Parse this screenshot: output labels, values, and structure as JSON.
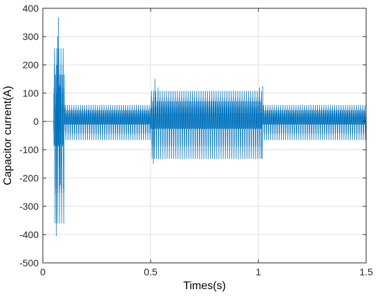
{
  "chart_data": {
    "type": "line",
    "title": "",
    "xlabel": "Times(s)",
    "ylabel": "Capacitor current(A)",
    "xlim": [
      0,
      1.5
    ],
    "ylim": [
      -500,
      400
    ],
    "xticks": [
      0,
      0.5,
      1,
      1.5
    ],
    "xtick_labels": [
      "0",
      "0.5",
      "1",
      "1.5"
    ],
    "yticks": [
      -500,
      -400,
      -300,
      -200,
      -100,
      0,
      100,
      200,
      300,
      400
    ],
    "ytick_labels": [
      "-500",
      "-400",
      "-300",
      "-200",
      "-100",
      "0",
      "100",
      "200",
      "300",
      "400"
    ],
    "grid": true,
    "line_color": "#0072BD",
    "series": [
      {
        "segments": [
          {
            "t_start": 0.0,
            "t_end": 0.05,
            "envelope_max": 0,
            "envelope_min": 0
          },
          {
            "t_start": 0.05,
            "t_end": 0.1,
            "envelope_max": 367,
            "envelope_min": -405
          },
          {
            "t_start": 0.1,
            "t_end": 0.5,
            "envelope_max": 80,
            "envelope_min": -75
          },
          {
            "t_start": 0.5,
            "t_end": 1.02,
            "envelope_max": 150,
            "envelope_min": -150
          },
          {
            "t_start": 1.02,
            "t_end": 1.5,
            "envelope_max": 80,
            "envelope_min": -75
          }
        ],
        "oscillation_frequency_hz": 100,
        "points": [
          [
            0.05,
            0
          ],
          [
            0.052,
            120
          ],
          [
            0.055,
            185
          ],
          [
            0.058,
            -230
          ],
          [
            0.061,
            90
          ],
          [
            0.063,
            -405
          ],
          [
            0.066,
            200
          ],
          [
            0.069,
            300
          ],
          [
            0.072,
            367
          ],
          [
            0.075,
            -160
          ],
          [
            0.078,
            130
          ],
          [
            0.081,
            -225
          ],
          [
            0.084,
            95
          ],
          [
            0.087,
            -180
          ],
          [
            0.09,
            50
          ],
          [
            0.513,
            -150
          ],
          [
            0.52,
            150
          ],
          [
            0.527,
            -130
          ],
          [
            0.535,
            120
          ],
          [
            1.005,
            120
          ],
          [
            1.015,
            -130
          ],
          [
            1.02,
            125
          ]
        ]
      }
    ]
  }
}
